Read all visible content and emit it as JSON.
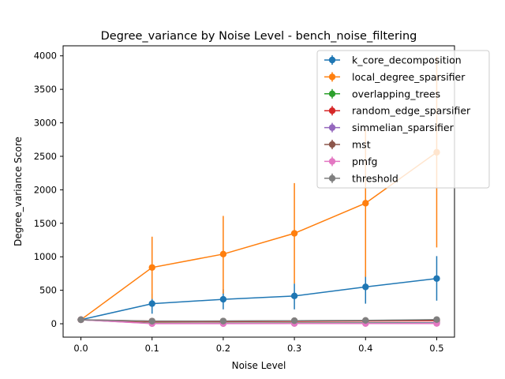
{
  "chart_data": {
    "type": "line",
    "title": "Degree_variance by Noise Level - bench_noise_filtering",
    "xlabel": "Noise Level",
    "ylabel": "Degree_variance Score",
    "x": [
      0.0,
      0.1,
      0.2,
      0.3,
      0.4,
      0.5
    ],
    "xticks": [
      "0.0",
      "0.1",
      "0.2",
      "0.3",
      "0.4",
      "0.5"
    ],
    "yticks": [
      "0",
      "500",
      "1000",
      "1500",
      "2000",
      "2500",
      "3000",
      "3500",
      "4000"
    ],
    "xlim": [
      -0.025,
      0.525
    ],
    "ylim": [
      -200,
      4150
    ],
    "legend_position": "top-right",
    "grid": false,
    "series": [
      {
        "name": "k_core_decomposition",
        "color": "#1f77b4",
        "values": [
          60,
          300,
          365,
          415,
          550,
          675
        ],
        "err_low": [
          20,
          150,
          215,
          215,
          300,
          345
        ],
        "err_high": [
          100,
          450,
          515,
          600,
          800,
          1010
        ]
      },
      {
        "name": "local_degree_sparsifier",
        "color": "#ff7f0e",
        "values": [
          60,
          840,
          1040,
          1350,
          1800,
          2560
        ],
        "err_low": [
          20,
          370,
          450,
          600,
          700,
          1140
        ],
        "err_high": [
          100,
          1300,
          1610,
          2100,
          2900,
          3990
        ]
      },
      {
        "name": "overlapping_trees",
        "color": "#2ca02c",
        "values": [
          60,
          10,
          10,
          12,
          14,
          15
        ],
        "err_low": [
          20,
          0,
          0,
          0,
          0,
          0
        ],
        "err_high": [
          100,
          25,
          25,
          28,
          30,
          32
        ]
      },
      {
        "name": "random_edge_sparsifier",
        "color": "#d62728",
        "values": [
          60,
          30,
          32,
          36,
          40,
          45
        ],
        "err_low": [
          20,
          15,
          15,
          18,
          20,
          22
        ],
        "err_high": [
          100,
          45,
          50,
          55,
          60,
          68
        ]
      },
      {
        "name": "simmelian_sparsifier",
        "color": "#9467bd",
        "values": [
          60,
          5,
          6,
          8,
          10,
          12
        ],
        "err_low": [
          20,
          0,
          0,
          0,
          0,
          0
        ],
        "err_high": [
          100,
          15,
          18,
          20,
          22,
          25
        ]
      },
      {
        "name": "mst",
        "color": "#8c564b",
        "values": [
          60,
          40,
          40,
          45,
          48,
          60
        ],
        "err_low": [
          20,
          25,
          25,
          28,
          30,
          35
        ],
        "err_high": [
          100,
          55,
          55,
          62,
          66,
          85
        ]
      },
      {
        "name": "pmfg",
        "color": "#e377c2",
        "values": [
          60,
          2,
          2,
          3,
          3,
          4
        ],
        "err_low": [
          20,
          0,
          0,
          0,
          0,
          0
        ],
        "err_high": [
          100,
          8,
          8,
          9,
          9,
          10
        ]
      },
      {
        "name": "threshold",
        "color": "#7f7f7f",
        "values": [
          60,
          38,
          40,
          45,
          50,
          62
        ],
        "err_low": [
          20,
          22,
          24,
          26,
          28,
          32
        ],
        "err_high": [
          100,
          54,
          56,
          64,
          72,
          92
        ]
      }
    ]
  }
}
